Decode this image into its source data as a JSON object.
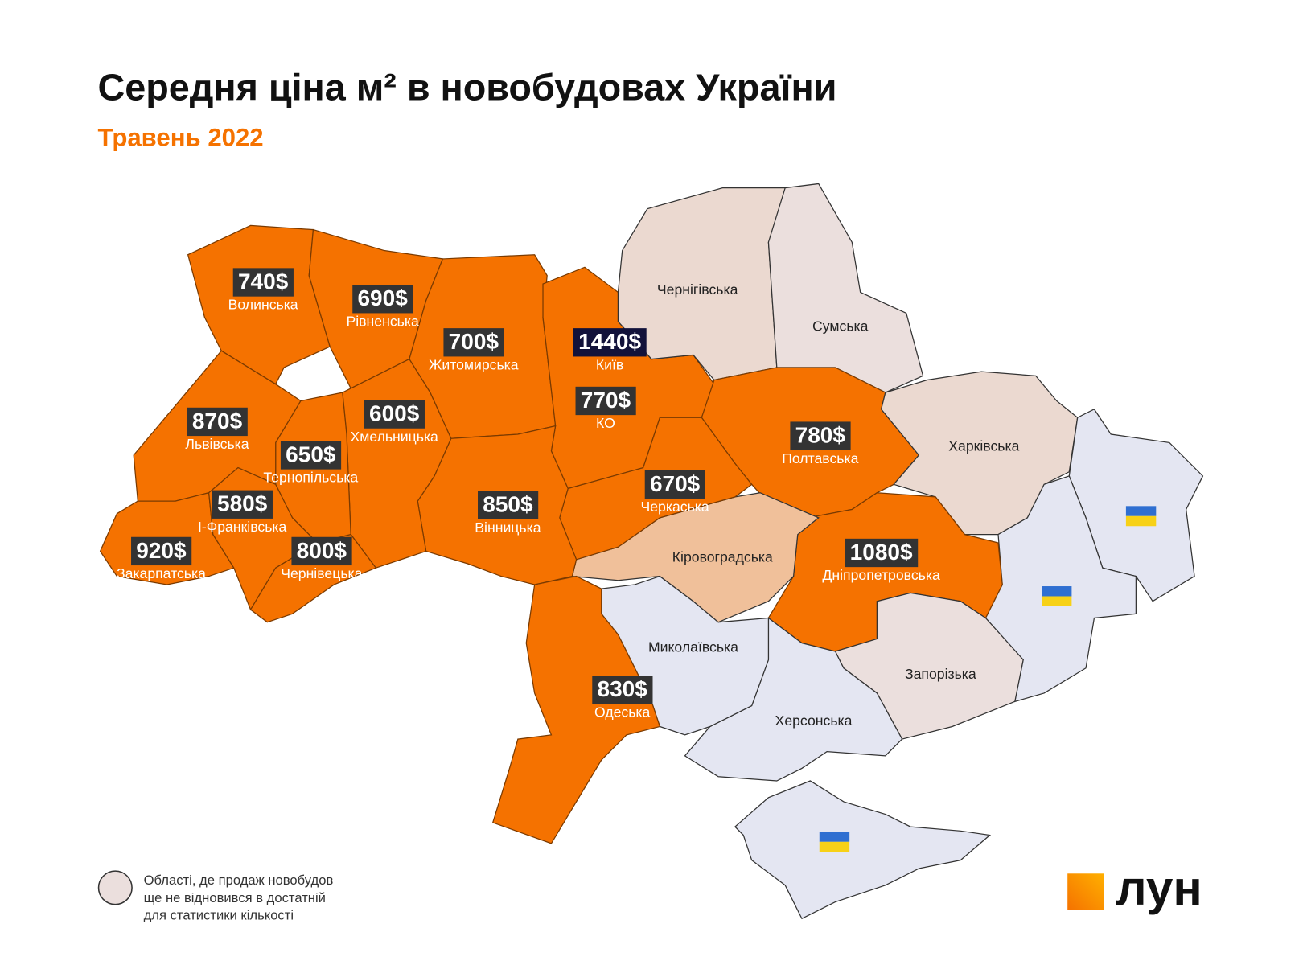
{
  "header": {
    "title": "Середня ціна м² в новобудовах України",
    "subtitle": "Травень 2022"
  },
  "regions": [
    {
      "name": "Волинська",
      "price": "740$"
    },
    {
      "name": "Рівненська",
      "price": "690$"
    },
    {
      "name": "Житомирська",
      "price": "700$"
    },
    {
      "name": "Київ",
      "price": "1440$"
    },
    {
      "name": "КО",
      "price": "770$"
    },
    {
      "name": "Хмельницька",
      "price": "600$"
    },
    {
      "name": "Львівська",
      "price": "870$"
    },
    {
      "name": "Тернопільська",
      "price": "650$"
    },
    {
      "name": "І-Франківська",
      "price": "580$"
    },
    {
      "name": "Вінницька",
      "price": "850$"
    },
    {
      "name": "Черкаська",
      "price": "670$"
    },
    {
      "name": "Полтавська",
      "price": "780$"
    },
    {
      "name": "Закарпатська",
      "price": "920$"
    },
    {
      "name": "Чернівецька",
      "price": "800$"
    },
    {
      "name": "Дніпропетровська",
      "price": "1080$"
    },
    {
      "name": "Одеська",
      "price": "830$"
    }
  ],
  "unpriced_regions": [
    "Чернігівська",
    "Сумська",
    "Харківська",
    "Кіровоградська",
    "Миколаївська",
    "Запорізька",
    "Херсонська"
  ],
  "legend": [
    "Області, де продаж новобудов",
    "ще не відновився в достатній",
    "для статистики кількості"
  ],
  "logo": "лун"
}
